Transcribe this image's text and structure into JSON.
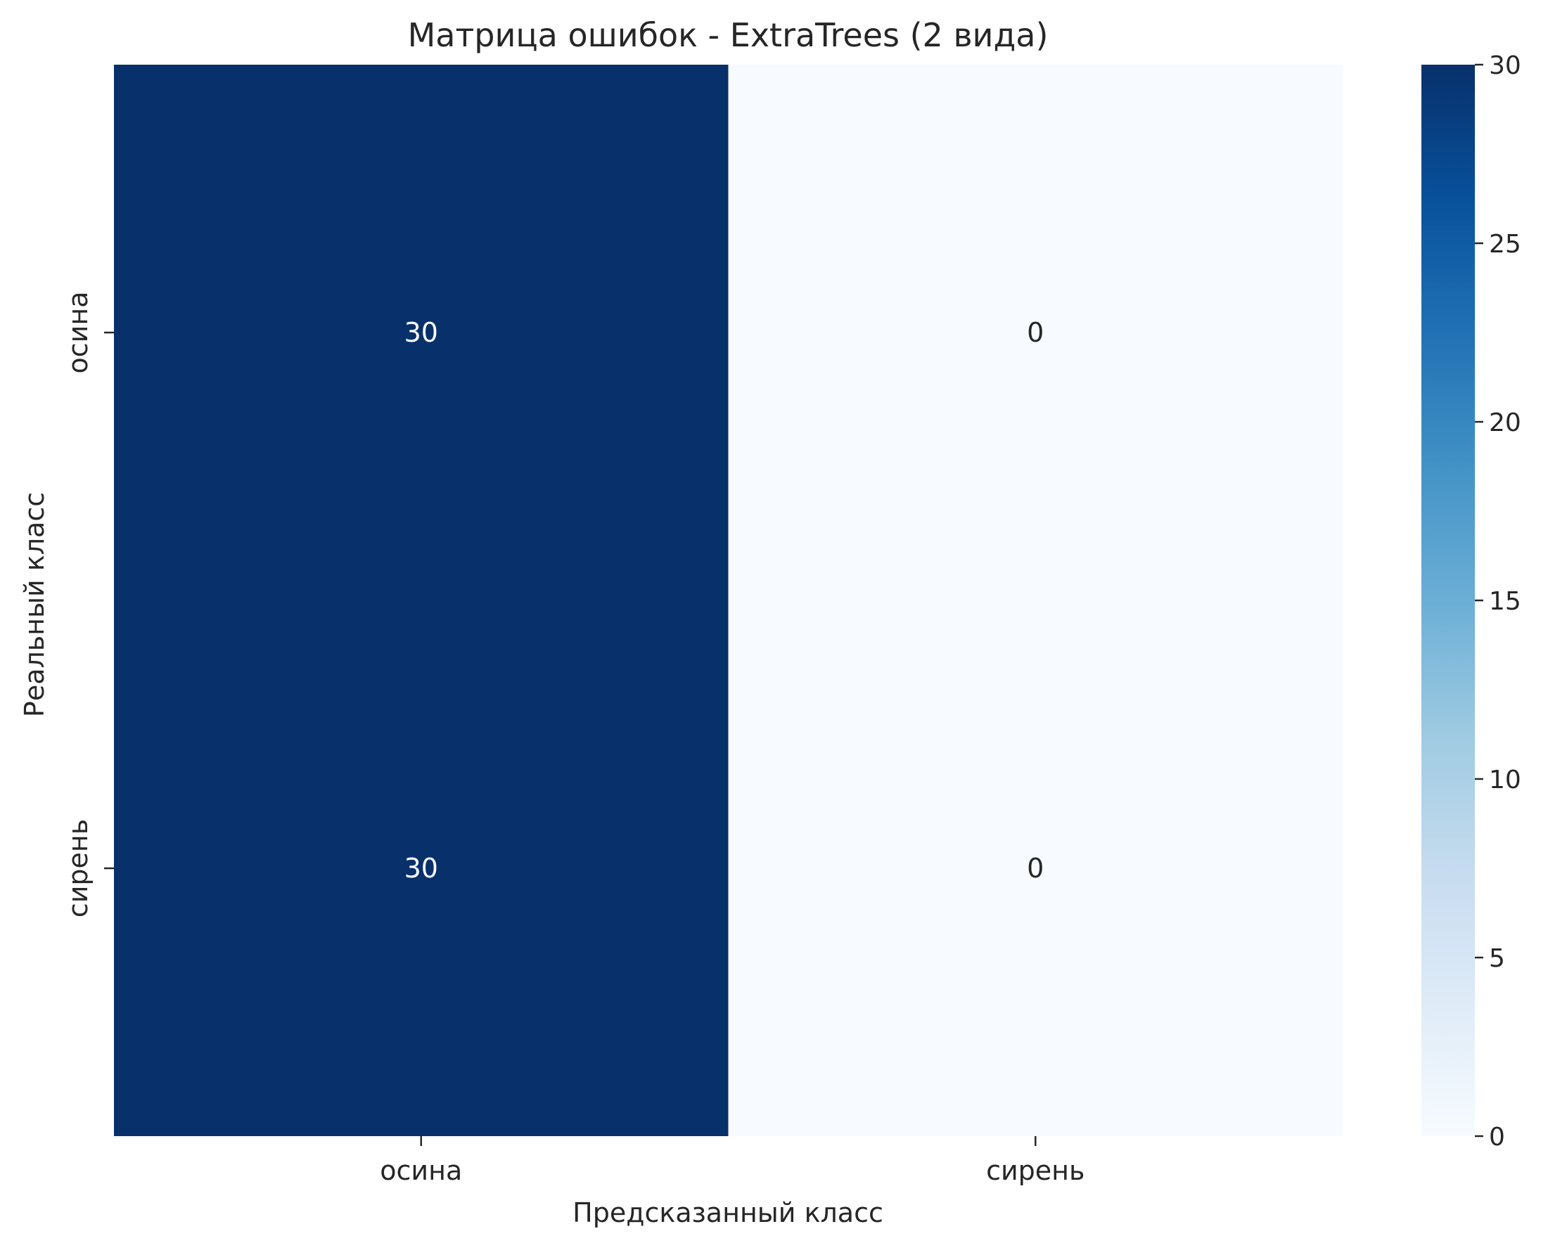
{
  "chart_data": {
    "type": "heatmap",
    "title": "Матрица ошибок - ExtraTrees (2 вида)",
    "xlabel": "Предсказанный класс",
    "ylabel": "Реальный класс",
    "x_categories": [
      "осина",
      "сирень"
    ],
    "y_categories": [
      "осина",
      "сирень"
    ],
    "values": [
      [
        30,
        0
      ],
      [
        30,
        0
      ]
    ],
    "colormap": "Blues",
    "vmin": 0,
    "vmax": 30,
    "colorbar_ticks": [
      "0",
      "5",
      "10",
      "15",
      "20",
      "25",
      "30"
    ],
    "colors": {
      "low": "#f7fbff",
      "high": "#08306b",
      "text_dark": "#262626",
      "text_light": "#ffffff"
    }
  }
}
